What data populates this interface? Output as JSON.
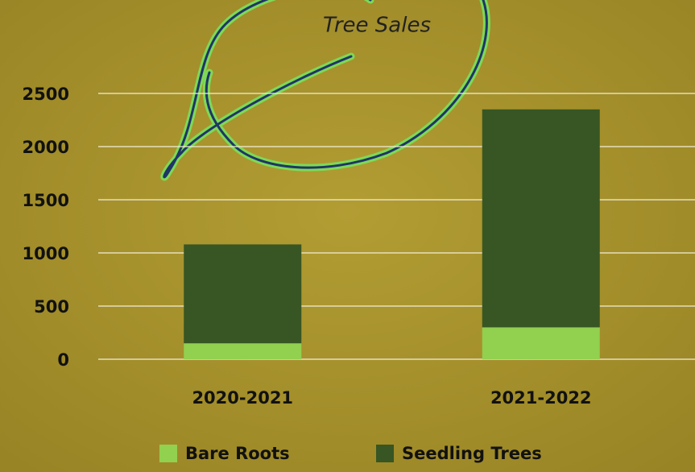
{
  "chart_data": {
    "type": "stacked_bar",
    "title": "Tree Sales",
    "categories": [
      "2020-2021",
      "2021-2022"
    ],
    "series": [
      {
        "name": "Bare Roots",
        "color": "#92d050",
        "values": [
          150,
          300
        ]
      },
      {
        "name": "Seedling Trees",
        "color": "#375623",
        "values": [
          930,
          2050
        ]
      }
    ],
    "ylim": [
      0,
      2500
    ],
    "yticks": [
      0,
      500,
      1000,
      1500,
      2000,
      2500
    ],
    "grid": true,
    "legend": "bottom"
  }
}
